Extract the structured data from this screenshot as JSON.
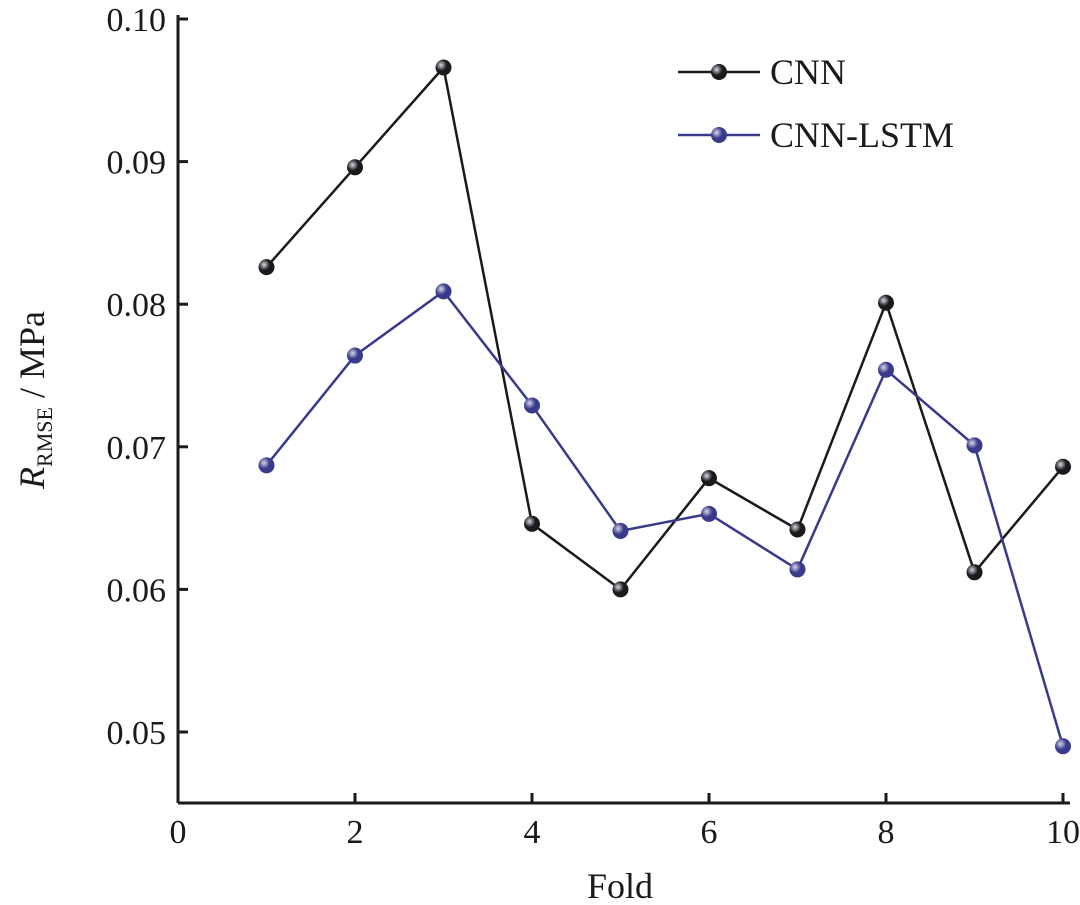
{
  "chart_data": {
    "type": "line",
    "title": "",
    "xlabel": "Fold",
    "ylabel_main": "R",
    "ylabel_sub": "RMSE",
    "ylabel_unit": " / MPa",
    "xlim": [
      0,
      10
    ],
    "ylim": [
      0.045,
      0.1
    ],
    "xticks": [
      "0",
      "2",
      "4",
      "6",
      "8",
      "10"
    ],
    "yticks": [
      "0.05",
      "0.06",
      "0.07",
      "0.08",
      "0.09",
      "0.10"
    ],
    "grid": false,
    "legend_position": "top-right",
    "x": [
      1,
      2,
      3,
      4,
      5,
      6,
      7,
      8,
      9,
      10
    ],
    "series": [
      {
        "name": "CNN",
        "color": "#1a1a1a",
        "values": [
          0.0826,
          0.0896,
          0.0966,
          0.0646,
          0.06,
          0.0678,
          0.0642,
          0.0801,
          0.0612,
          0.0686
        ]
      },
      {
        "name": "CNN-LSTM",
        "color": "#3a3a8c",
        "values": [
          0.0687,
          0.0764,
          0.0809,
          0.0729,
          0.0641,
          0.0653,
          0.0614,
          0.0754,
          0.0701,
          0.049
        ]
      }
    ]
  }
}
